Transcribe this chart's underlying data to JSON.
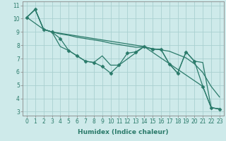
{
  "xlabel": "Humidex (Indice chaleur)",
  "background_color": "#ceeaea",
  "grid_color": "#aad0d0",
  "line_color": "#2a7a6a",
  "spine_color": "#888888",
  "xlim": [
    -0.5,
    23.5
  ],
  "ylim": [
    2.7,
    11.3
  ],
  "yticks": [
    3,
    4,
    5,
    6,
    7,
    8,
    9,
    10,
    11
  ],
  "xticks": [
    0,
    1,
    2,
    3,
    4,
    5,
    6,
    7,
    8,
    9,
    10,
    11,
    12,
    13,
    14,
    15,
    16,
    17,
    18,
    19,
    20,
    21,
    22,
    23
  ],
  "series": [
    {
      "x": [
        0,
        1,
        2,
        3,
        4,
        5,
        6,
        7,
        8,
        9,
        10,
        11,
        12,
        13,
        14,
        15,
        16,
        17,
        18,
        19,
        20,
        21,
        22,
        23
      ],
      "y": [
        10.1,
        10.7,
        9.2,
        9.0,
        8.5,
        7.6,
        7.2,
        6.8,
        6.7,
        6.4,
        5.9,
        6.5,
        7.4,
        7.5,
        7.9,
        7.7,
        7.7,
        6.6,
        5.9,
        7.5,
        6.8,
        4.9,
        3.3,
        3.2
      ],
      "marker": "D",
      "markersize": 2.5,
      "lw": 0.9
    },
    {
      "x": [
        0,
        1,
        2,
        3,
        4,
        5,
        6,
        7,
        8,
        9,
        10,
        11,
        12,
        13,
        14,
        15,
        16,
        17,
        18,
        19,
        20,
        21,
        22,
        23
      ],
      "y": [
        10.1,
        10.7,
        9.2,
        9.0,
        8.85,
        8.75,
        8.6,
        8.5,
        8.4,
        8.3,
        8.15,
        8.05,
        7.95,
        7.85,
        7.85,
        7.75,
        7.65,
        7.55,
        7.3,
        7.05,
        6.6,
        5.95,
        4.9,
        4.1
      ],
      "marker": null,
      "lw": 0.9
    },
    {
      "x": [
        0,
        1,
        2,
        3,
        14,
        21,
        22,
        23
      ],
      "y": [
        10.1,
        10.7,
        9.2,
        9.0,
        7.9,
        4.9,
        3.3,
        3.2
      ],
      "marker": null,
      "lw": 0.9
    },
    {
      "x": [
        0,
        2,
        3,
        4,
        5,
        6,
        7,
        8,
        9,
        10,
        11,
        14,
        15,
        16,
        17,
        18,
        19,
        20,
        21,
        22,
        23
      ],
      "y": [
        10.1,
        9.2,
        9.0,
        7.9,
        7.6,
        7.2,
        6.8,
        6.7,
        7.2,
        6.5,
        6.5,
        7.9,
        7.7,
        7.7,
        6.6,
        5.9,
        7.5,
        6.8,
        6.7,
        3.3,
        3.2
      ],
      "marker": null,
      "lw": 0.9
    }
  ],
  "tick_fontsize": 5.5,
  "xlabel_fontsize": 6.5,
  "xlabel_fontweight": "bold"
}
